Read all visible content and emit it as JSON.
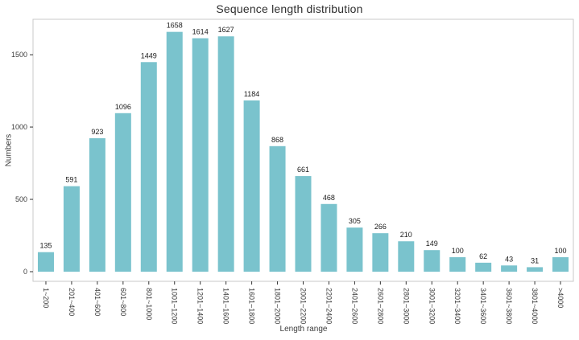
{
  "colors": {
    "bar": "#7ac3cd",
    "panel_border": "#c8c8c8",
    "tick_mark": "#333333",
    "axis_text": "#3c3c3c",
    "value_label_text": "#1a1a1a",
    "background": "#ffffff"
  },
  "chart_data": {
    "type": "bar",
    "title": "Sequence length distribution",
    "xlabel": "Length range",
    "ylabel": "Numbers",
    "categories": [
      "1~200",
      "201~400",
      "401~600",
      "601~800",
      "801~1000",
      "1001~1200",
      "1201~1400",
      "1401~1600",
      "1601~1800",
      "1801~2000",
      "2001~2200",
      "2201~2400",
      "2401~2600",
      "2601~2800",
      "2801~3000",
      "3001~3200",
      "3201~3400",
      "3401~3600",
      "3601~3800",
      "3801~4000",
      ">4000"
    ],
    "values": [
      135,
      591,
      923,
      1096,
      1449,
      1658,
      1614,
      1627,
      1184,
      868,
      661,
      468,
      305,
      266,
      210,
      149,
      100,
      62,
      43,
      31,
      100
    ],
    "yticks": [
      0,
      500,
      1000,
      1500
    ],
    "ylim": [
      0,
      1745
    ],
    "grid": false,
    "legend": "none",
    "value_labels_shown": true,
    "x_label_rotation_deg": 90
  }
}
